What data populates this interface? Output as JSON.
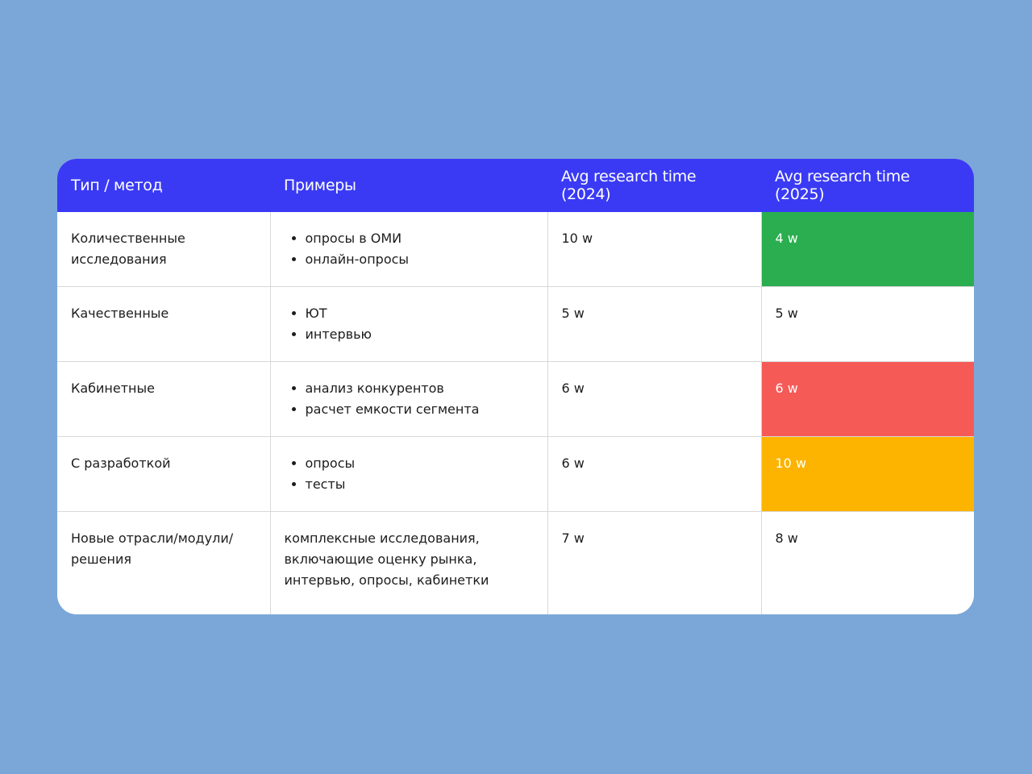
{
  "table": {
    "header": [
      "Тип / метод",
      "Примеры",
      "Avg research time (2024)",
      "Avg research time (2025)"
    ],
    "rows": [
      [
        "Количественные исследования",
        [
          "опросы в ОМИ",
          "онлайн-опросы"
        ],
        "10 w",
        "4 w"
      ],
      [
        "Качественные",
        [
          "ЮТ",
          "интервью"
        ],
        "5 w",
        "5 w"
      ],
      [
        "Кабинетные",
        [
          "анализ конкурентов",
          "расчет емкости сегмента"
        ],
        "6 w",
        "6 w"
      ],
      [
        "С разработкой",
        [
          "опросы",
          "тесты"
        ],
        "6 w",
        "10 w"
      ],
      [
        "Новые отрасли/модули/решения",
        "комплексные исследования, включающие оценку рынка, интервью, опросы, кабинетки",
        "7 w",
        "8 w"
      ]
    ]
  }
}
